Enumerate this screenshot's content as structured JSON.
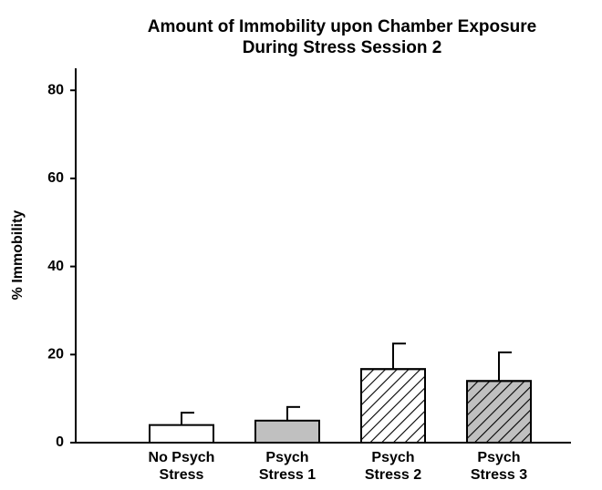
{
  "chart_data": {
    "type": "bar",
    "title": [
      "Amount of Immobility upon Chamber Exposure",
      "During Stress Session 2"
    ],
    "y_label": "% Immobility",
    "categories": [
      [
        "No Psych",
        "Stress"
      ],
      [
        "Psych",
        "Stress 1"
      ],
      [
        "Psych",
        "Stress 2"
      ],
      [
        "Psych",
        "Stress 3"
      ]
    ],
    "values": [
      4,
      5,
      16.7,
      14
    ],
    "errors": [
      2.8,
      3.1,
      5.8,
      6.5
    ],
    "colors": [
      "#ffffff",
      "#c0c0c0",
      "#ffffff",
      "#c0c0c0"
    ],
    "hatch": [
      false,
      false,
      true,
      true
    ],
    "ylim": [
      0,
      85
    ],
    "yticks": [
      0,
      20,
      40,
      60,
      80
    ],
    "grid": false
  }
}
